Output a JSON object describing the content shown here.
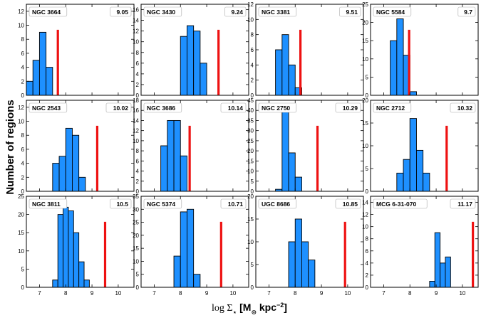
{
  "figure": {
    "ylabel": "Number of regions",
    "xlabel_prefix": "log Σ",
    "xlabel_sub": "⋆",
    "xlabel_units_open": " [M",
    "xlabel_units_sun": "⊙",
    "xlabel_units_rest": " kpc",
    "xlabel_units_exp": "−2",
    "xlabel_units_close": "]",
    "bar_color": "#1e90ff",
    "bar_edge": "#000000",
    "line_color": "#ee1111",
    "xlim": [
      6.5,
      10.6
    ],
    "xticks": [
      "7",
      "8",
      "9",
      "10"
    ],
    "bin_width": 0.25
  },
  "chart_data": [
    {
      "type": "bar",
      "galaxy": "NGC 3664",
      "mass_label": "9.05",
      "bins_start": 6.5,
      "counts": [
        2,
        5,
        9,
        4
      ],
      "marker": 7.7,
      "ylim": [
        0,
        13
      ],
      "yticks": [
        0,
        2,
        4,
        6,
        8,
        10,
        12
      ],
      "ytick_labels": [
        "0",
        "2",
        "4",
        "6",
        "8",
        "10",
        "12"
      ],
      "show_xticklabels": false
    },
    {
      "type": "bar",
      "galaxy": "NGC 3430",
      "mass_label": "9.24",
      "bins_start": 8.0,
      "counts": [
        11,
        13,
        12,
        6
      ],
      "marker": 9.45,
      "ylim": [
        0,
        17
      ],
      "yticks": [
        0,
        2,
        4,
        6,
        8,
        10,
        12,
        14,
        16
      ],
      "ytick_labels": [
        "0",
        "2",
        "4",
        "6",
        "8",
        "10",
        "12",
        "14",
        "16"
      ],
      "show_xticklabels": false
    },
    {
      "type": "bar",
      "galaxy": "NGC 3381",
      "mass_label": "9.51",
      "bins_start": 7.25,
      "counts": [
        6,
        8,
        4,
        1
      ],
      "marker": 8.2,
      "ylim": [
        0,
        12
      ],
      "yticks": [
        0,
        2,
        4,
        6,
        8,
        10,
        12
      ],
      "ytick_labels": [
        "0",
        "2",
        "4",
        "6",
        "8",
        "10",
        "12"
      ],
      "show_xticklabels": false
    },
    {
      "type": "bar",
      "galaxy": "NGC 5584",
      "mass_label": "9.7",
      "bins_start": 7.25,
      "counts": [
        15,
        21,
        11,
        1
      ],
      "marker": 7.97,
      "ylim": [
        0,
        25
      ],
      "yticks": [
        0,
        5,
        10,
        15,
        20,
        25
      ],
      "ytick_labels": [
        "0",
        "5",
        "10",
        "15",
        "20",
        "25"
      ],
      "show_xticklabels": false
    },
    {
      "type": "bar",
      "galaxy": "NGC 2543",
      "mass_label": "10.02",
      "bins_start": 7.5,
      "counts": [
        4,
        5,
        9,
        8,
        2
      ],
      "marker": 9.2,
      "ylim": [
        0,
        13
      ],
      "yticks": [
        0,
        2,
        4,
        6,
        8,
        10,
        12
      ],
      "ytick_labels": [
        "0",
        "2",
        "4",
        "6",
        "8",
        "10",
        "12"
      ],
      "show_xticklabels": false
    },
    {
      "type": "bar",
      "galaxy": "NGC 3686",
      "mass_label": "10.14",
      "bins_start": 7.25,
      "counts": [
        9,
        14,
        14,
        7
      ],
      "marker": 8.35,
      "ylim": [
        0,
        18
      ],
      "yticks": [
        0,
        2,
        4,
        6,
        8,
        10,
        12,
        14,
        16,
        18
      ],
      "ytick_labels": [
        "0",
        "2",
        "4",
        "6",
        "8",
        "10",
        "12",
        "14",
        "16",
        "18"
      ],
      "show_xticklabels": false
    },
    {
      "type": "bar",
      "galaxy": "NGC 2750",
      "mass_label": "10.29",
      "bins_start": 7.25,
      "counts": [
        1,
        41,
        19,
        7
      ],
      "marker": 8.85,
      "ylim": [
        0,
        45
      ],
      "yticks": [
        0,
        5,
        10,
        15,
        20,
        25,
        30,
        35,
        40,
        45
      ],
      "ytick_labels": [
        "0",
        "5",
        "10",
        "15",
        "20",
        "25",
        "30",
        "35",
        "40",
        "45"
      ],
      "show_xticklabels": false
    },
    {
      "type": "bar",
      "galaxy": "NGC 2712",
      "mass_label": "10.32",
      "bins_start": 7.5,
      "counts": [
        4,
        7,
        16,
        9,
        4
      ],
      "marker": 9.4,
      "ylim": [
        0,
        20
      ],
      "yticks": [
        0,
        5,
        10,
        15,
        20
      ],
      "ytick_labels": [
        "0",
        "5",
        "10",
        "15",
        "20"
      ],
      "show_xticklabels": false
    },
    {
      "type": "bar",
      "galaxy": "NGC 3811",
      "mass_label": "10.5",
      "bins_start": 7.5,
      "counts": [
        2,
        20,
        22,
        21,
        15,
        7,
        2
      ],
      "bin_width": 0.2,
      "marker": 9.5,
      "ylim": [
        0,
        25
      ],
      "yticks": [
        0,
        5,
        10,
        15,
        20,
        25
      ],
      "ytick_labels": [
        "0",
        "5",
        "10",
        "15",
        "20",
        "25"
      ],
      "show_xticklabels": true
    },
    {
      "type": "bar",
      "galaxy": "NGC 5374",
      "mass_label": "10.71",
      "bins_start": 7.75,
      "counts": [
        12,
        29,
        30,
        5
      ],
      "marker": 9.55,
      "ylim": [
        0,
        35
      ],
      "yticks": [
        0,
        5,
        10,
        15,
        20,
        25,
        30,
        35
      ],
      "ytick_labels": [
        "0",
        "5",
        "10",
        "15",
        "20",
        "25",
        "30",
        "35"
      ],
      "show_xticklabels": true
    },
    {
      "type": "bar",
      "galaxy": "UGC 8686",
      "mass_label": "10.85",
      "bins_start": 7.75,
      "counts": [
        10,
        15,
        10,
        6
      ],
      "marker": 9.9,
      "ylim": [
        0,
        20
      ],
      "yticks": [
        0,
        5,
        10,
        15,
        20
      ],
      "ytick_labels": [
        "0",
        "5",
        "10",
        "15",
        "20"
      ],
      "show_xticklabels": true
    },
    {
      "type": "bar",
      "galaxy": "MCG 6-31-070",
      "mass_label": "11.17",
      "bins_start": 8.75,
      "counts": [
        1,
        9,
        4,
        5
      ],
      "bin_width": 0.2,
      "marker": 10.4,
      "ylim": [
        0,
        15
      ],
      "yticks": [
        0,
        2,
        4,
        6,
        8,
        10,
        12,
        14
      ],
      "ytick_labels": [
        "0",
        "2",
        "4",
        "6",
        "8",
        "10",
        "12",
        "14"
      ],
      "show_xticklabels": true
    }
  ]
}
